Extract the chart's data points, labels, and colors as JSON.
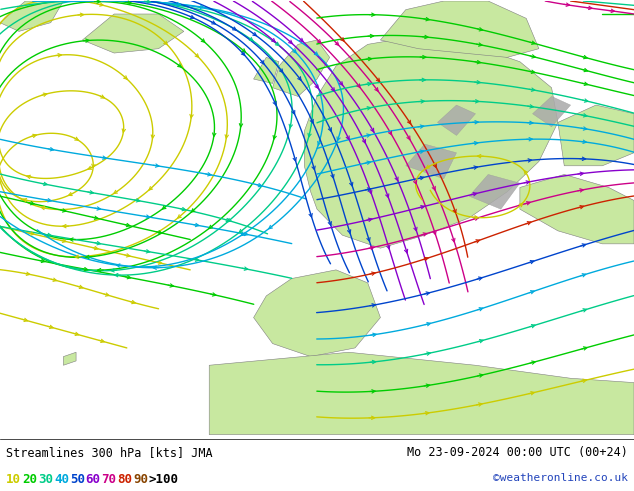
{
  "title_left": "Streamlines 300 hPa [kts] JMA",
  "title_right": "Mo 23-09-2024 00:00 UTC (00+24)",
  "credit": "©weatheronline.co.uk",
  "legend_values": [
    "10",
    "20",
    "30",
    "40",
    "50",
    "60",
    "70",
    "80",
    "90",
    ">100"
  ],
  "legend_colors": [
    "#cccc00",
    "#00cc00",
    "#00cc88",
    "#00aadd",
    "#0044cc",
    "#8800cc",
    "#cc0088",
    "#cc2200",
    "#884400",
    "#000000"
  ],
  "bg_color": "#ffffff",
  "sea_color": "#e8e8e8",
  "land_color_light": "#c8e8a0",
  "land_color_dark": "#a8c880",
  "mountain_color": "#aaaaaa",
  "figsize": [
    6.34,
    4.9
  ],
  "dpi": 100,
  "text_font": "monospace",
  "title_fontsize": 8.5,
  "legend_fontsize": 9,
  "streamline_lw": 1.0,
  "arrow_mutation_scale": 6,
  "arrow_lw_factor": 0.8
}
